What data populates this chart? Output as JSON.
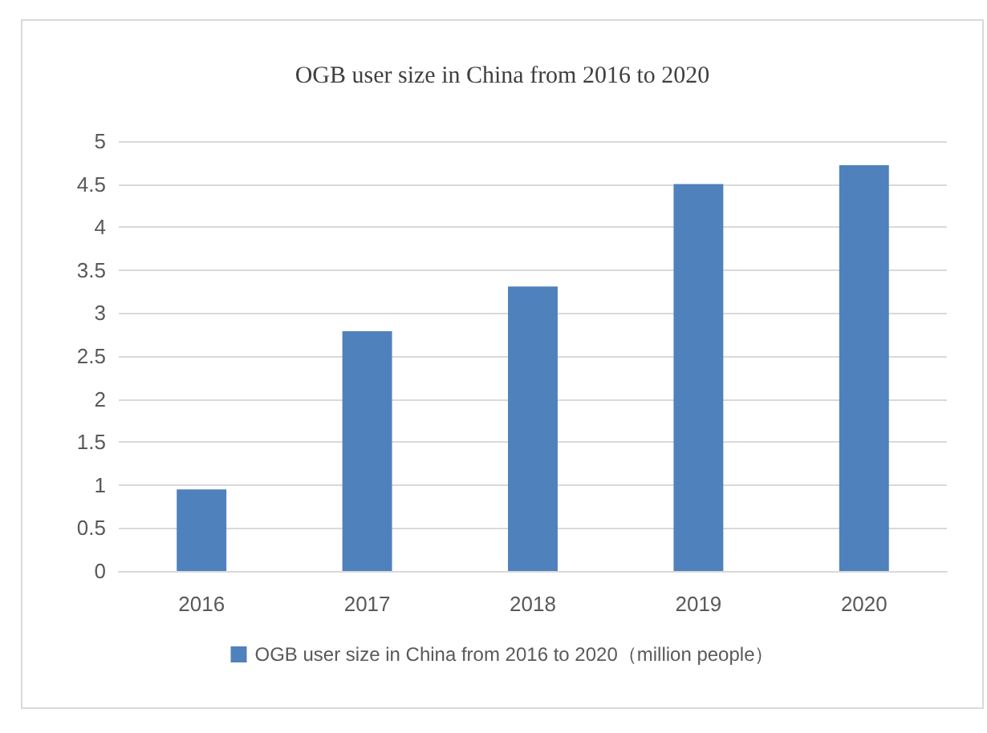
{
  "chart_data": {
    "type": "bar",
    "title": "OGB user size in China from 2016 to 2020",
    "categories": [
      "2016",
      "2017",
      "2018",
      "2019",
      "2020"
    ],
    "series": [
      {
        "name": "OGB user size in China from 2016 to 2020（million people）",
        "color": "#4f81bd",
        "values": [
          0.95,
          2.79,
          3.31,
          4.5,
          4.72
        ]
      }
    ],
    "ylim": [
      0,
      5
    ],
    "yticks": [
      0,
      0.5,
      1,
      1.5,
      2,
      2.5,
      3,
      3.5,
      4,
      4.5,
      5
    ],
    "grid": "y",
    "legend": "bottom"
  }
}
